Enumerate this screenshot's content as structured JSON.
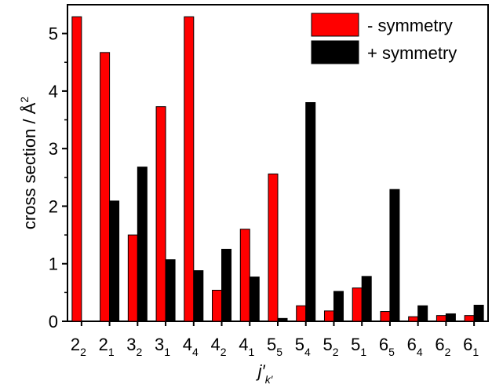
{
  "chart_data": {
    "type": "bar",
    "title": "",
    "xlabel": {
      "main": "j′",
      "sub": "k′"
    },
    "ylabel": {
      "text": "cross section / Å",
      "sup": "2"
    },
    "ylim": [
      0,
      5.5
    ],
    "yticks": [
      0,
      1,
      2,
      3,
      4,
      5
    ],
    "grid": false,
    "legend_position": "top-right",
    "categories": [
      {
        "main": "2",
        "sub": "2"
      },
      {
        "main": "2",
        "sub": "1"
      },
      {
        "main": "3",
        "sub": "2"
      },
      {
        "main": "3",
        "sub": "1"
      },
      {
        "main": "4",
        "sub": "4"
      },
      {
        "main": "4",
        "sub": "2"
      },
      {
        "main": "4",
        "sub": "1"
      },
      {
        "main": "5",
        "sub": "5"
      },
      {
        "main": "5",
        "sub": "4"
      },
      {
        "main": "5",
        "sub": "2"
      },
      {
        "main": "5",
        "sub": "1"
      },
      {
        "main": "6",
        "sub": "5"
      },
      {
        "main": "6",
        "sub": "4"
      },
      {
        "main": "6",
        "sub": "2"
      },
      {
        "main": "6",
        "sub": "1"
      }
    ],
    "series": [
      {
        "name": "- symmetry",
        "color": "#ff0000",
        "values": [
          5.29,
          4.67,
          1.5,
          3.73,
          5.29,
          0.54,
          1.6,
          2.56,
          0.27,
          0.18,
          0.58,
          0.17,
          0.08,
          0.1,
          0.1
        ]
      },
      {
        "name": "+ symmetry",
        "color": "#000000",
        "values": [
          0.0,
          2.09,
          2.68,
          1.07,
          0.88,
          1.25,
          0.77,
          0.05,
          3.8,
          0.52,
          0.78,
          2.29,
          0.27,
          0.13,
          0.28
        ]
      }
    ]
  }
}
